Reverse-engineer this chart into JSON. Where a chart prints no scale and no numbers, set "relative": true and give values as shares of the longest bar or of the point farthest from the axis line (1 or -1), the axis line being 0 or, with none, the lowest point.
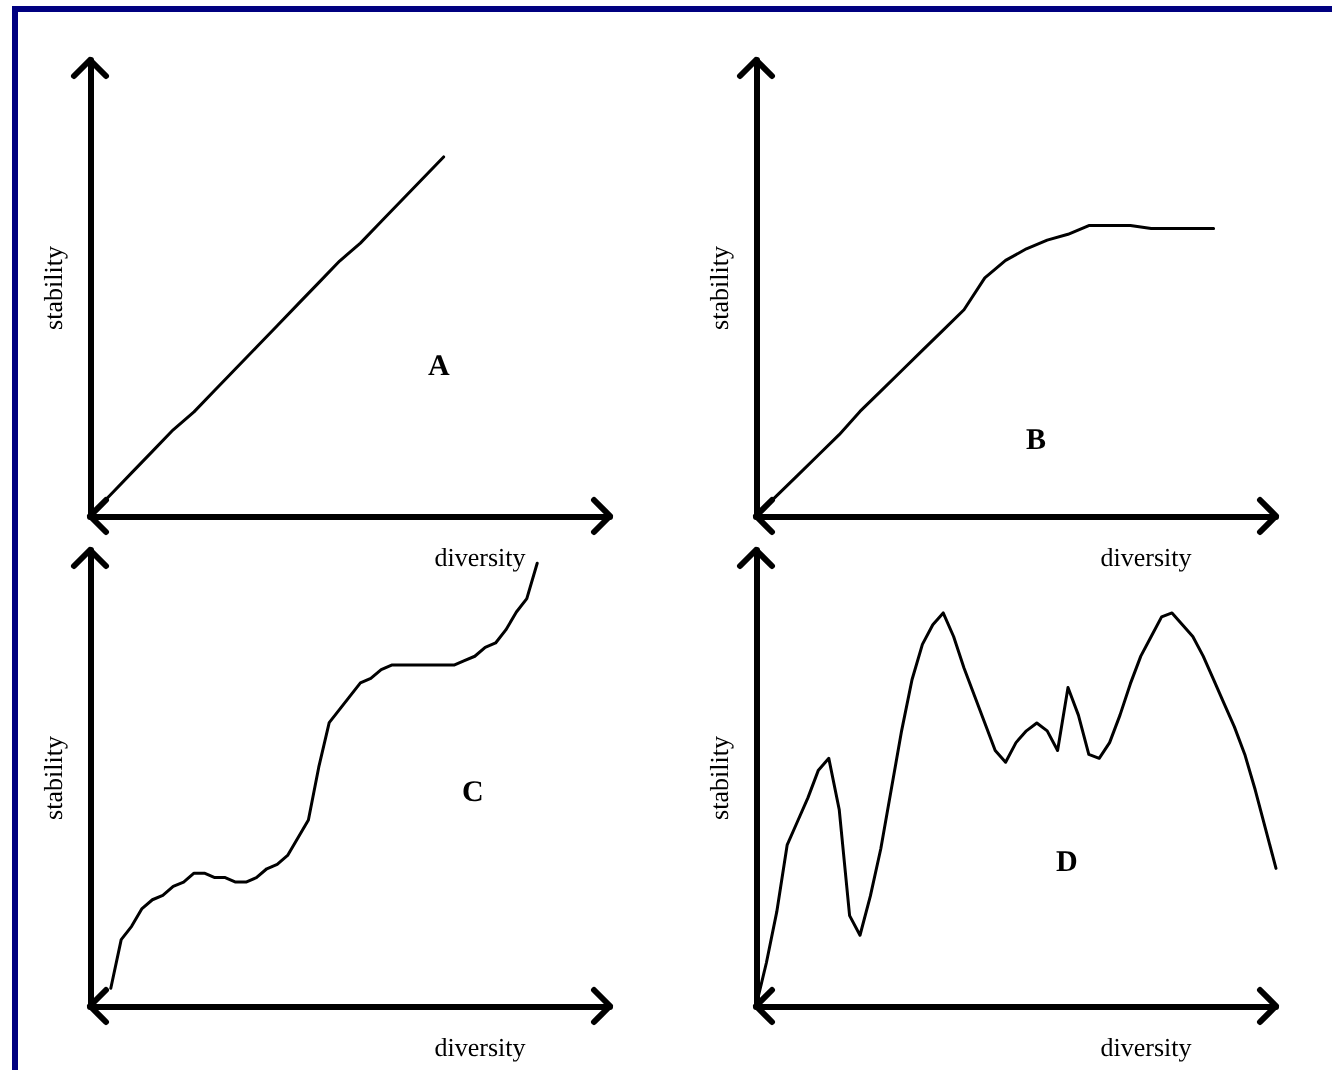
{
  "chart_data": [
    {
      "type": "line",
      "relative": true,
      "xlabel": "diversity",
      "ylabel": "stability",
      "annotations": [
        "A"
      ],
      "grid": false,
      "marker": "none",
      "line_style": "solid",
      "categories": [
        null,
        null,
        null,
        null,
        null,
        null,
        null,
        null,
        null,
        null,
        null,
        null,
        null,
        null,
        null,
        null,
        null,
        null,
        null,
        null,
        null,
        null,
        null,
        null,
        null,
        null
      ],
      "series": [
        {
          "color": "#000000",
          "values": [
            0,
            0.06,
            0.12,
            0.18,
            0.24,
            0.29,
            0.35,
            0.41,
            0.47,
            0.53,
            0.59,
            0.65,
            0.71,
            0.76,
            0.82,
            0.88,
            0.94,
            1,
            null,
            null,
            null,
            null,
            null,
            null,
            null,
            null
          ]
        }
      ]
    },
    {
      "type": "line",
      "relative": true,
      "xlabel": "diversity",
      "ylabel": "stability",
      "annotations": [
        "B"
      ],
      "grid": false,
      "marker": "none",
      "line_style": "solid",
      "categories": [
        null,
        null,
        null,
        null,
        null,
        null,
        null,
        null,
        null,
        null,
        null,
        null,
        null,
        null,
        null,
        null,
        null,
        null,
        null,
        null,
        null,
        null,
        null,
        null,
        null,
        null
      ],
      "series": [
        {
          "color": "#000000",
          "values": [
            0,
            0.07,
            0.14,
            0.21,
            0.28,
            0.36,
            0.43,
            0.5,
            0.57,
            0.64,
            0.71,
            0.82,
            0.88,
            0.92,
            0.95,
            0.97,
            1,
            1,
            1,
            0.99,
            0.99,
            0.99,
            0.99,
            null,
            null,
            null
          ]
        }
      ]
    },
    {
      "type": "line",
      "relative": true,
      "xlabel": "diversity",
      "ylabel": "stability",
      "annotations": [
        "C"
      ],
      "grid": false,
      "marker": "none",
      "line_style": "solid",
      "categories": [
        null,
        null,
        null,
        null,
        null,
        null,
        null,
        null,
        null,
        null,
        null,
        null,
        null,
        null,
        null,
        null,
        null,
        null,
        null,
        null,
        null,
        null,
        null,
        null,
        null,
        null,
        null,
        null,
        null,
        null,
        null,
        null,
        null,
        null,
        null,
        null,
        null,
        null,
        null,
        null,
        null,
        null,
        null,
        null,
        null,
        null,
        null,
        null,
        null,
        null,
        null
      ],
      "series": [
        {
          "color": "#000000",
          "values": [
            null,
            null,
            0.04,
            0.15,
            0.18,
            0.22,
            0.24,
            0.25,
            0.27,
            0.28,
            0.3,
            0.3,
            0.29,
            0.29,
            0.28,
            0.28,
            0.29,
            0.31,
            0.32,
            0.34,
            0.38,
            0.42,
            0.54,
            0.64,
            0.67,
            0.7,
            0.73,
            0.74,
            0.76,
            0.77,
            0.77,
            0.77,
            0.77,
            0.77,
            0.77,
            0.77,
            0.78,
            0.79,
            0.81,
            0.82,
            0.85,
            0.89,
            0.92,
            1,
            null,
            null,
            null,
            null,
            null,
            null,
            null
          ]
        }
      ]
    },
    {
      "type": "line",
      "relative": true,
      "xlabel": "diversity",
      "ylabel": "stability",
      "annotations": [
        "D"
      ],
      "grid": false,
      "marker": "none",
      "line_style": "solid",
      "categories": [
        null,
        null,
        null,
        null,
        null,
        null,
        null,
        null,
        null,
        null,
        null,
        null,
        null,
        null,
        null,
        null,
        null,
        null,
        null,
        null,
        null,
        null,
        null,
        null,
        null,
        null,
        null,
        null,
        null,
        null,
        null,
        null,
        null,
        null,
        null,
        null,
        null,
        null,
        null,
        null,
        null,
        null,
        null,
        null,
        null,
        null,
        null,
        null,
        null,
        null,
        null
      ],
      "series": [
        {
          "color": "#000000",
          "values": [
            0,
            0.11,
            0.24,
            0.41,
            0.47,
            0.53,
            0.6,
            0.63,
            0.5,
            0.23,
            0.18,
            0.28,
            0.4,
            0.55,
            0.7,
            0.83,
            0.92,
            0.97,
            1,
            0.94,
            0.86,
            0.79,
            0.72,
            0.65,
            0.62,
            0.67,
            0.7,
            0.72,
            0.7,
            0.65,
            0.81,
            0.74,
            0.64,
            0.63,
            0.67,
            0.74,
            0.82,
            0.89,
            0.94,
            0.99,
            1,
            0.97,
            0.94,
            0.89,
            0.83,
            0.77,
            0.71,
            0.64,
            0.55,
            0.45,
            0.35
          ]
        }
      ]
    }
  ]
}
